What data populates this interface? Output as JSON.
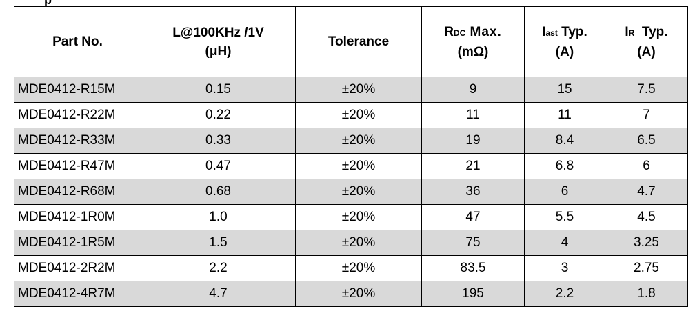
{
  "cut_text": "p",
  "header": {
    "part_no": "Part No.",
    "inductance_line1": "L@100KHz /1V",
    "inductance_line2": "(μH)",
    "tolerance": "Tolerance",
    "rdc_R": "R",
    "rdc_sub": "DC",
    "rdc_rest": " Max.",
    "rdc_unit": "(mΩ)",
    "isat_I": "I",
    "isat_sub": "ast",
    "isat_rest": " Typ.",
    "isat_unit": "(A)",
    "ir_I": "I",
    "ir_sub": "R",
    "ir_rest": "  Typ.",
    "ir_unit": "(A)"
  },
  "rows": [
    {
      "part": "MDE0412-R15M",
      "l": "0.15",
      "tol": "±20%",
      "rdc": "9",
      "isat": "15",
      "ir": "7.5"
    },
    {
      "part": "MDE0412-R22M",
      "l": "0.22",
      "tol": "±20%",
      "rdc": "11",
      "isat": "11",
      "ir": "7"
    },
    {
      "part": "MDE0412-R33M",
      "l": "0.33",
      "tol": "±20%",
      "rdc": "19",
      "isat": "8.4",
      "ir": "6.5"
    },
    {
      "part": "MDE0412-R47M",
      "l": "0.47",
      "tol": "±20%",
      "rdc": "21",
      "isat": "6.8",
      "ir": "6"
    },
    {
      "part": "MDE0412-R68M",
      "l": "0.68",
      "tol": "±20%",
      "rdc": "36",
      "isat": "6",
      "ir": "4.7"
    },
    {
      "part": "MDE0412-1R0M",
      "l": "1.0",
      "tol": "±20%",
      "rdc": "47",
      "isat": "5.5",
      "ir": "4.5"
    },
    {
      "part": "MDE0412-1R5M",
      "l": "1.5",
      "tol": "±20%",
      "rdc": "75",
      "isat": "4",
      "ir": "3.25"
    },
    {
      "part": "MDE0412-2R2M",
      "l": "2.2",
      "tol": "±20%",
      "rdc": "83.5",
      "isat": "3",
      "ir": "2.75"
    },
    {
      "part": "MDE0412-4R7M",
      "l": "4.7",
      "tol": "±20%",
      "rdc": "195",
      "isat": "2.2",
      "ir": "1.8"
    }
  ]
}
